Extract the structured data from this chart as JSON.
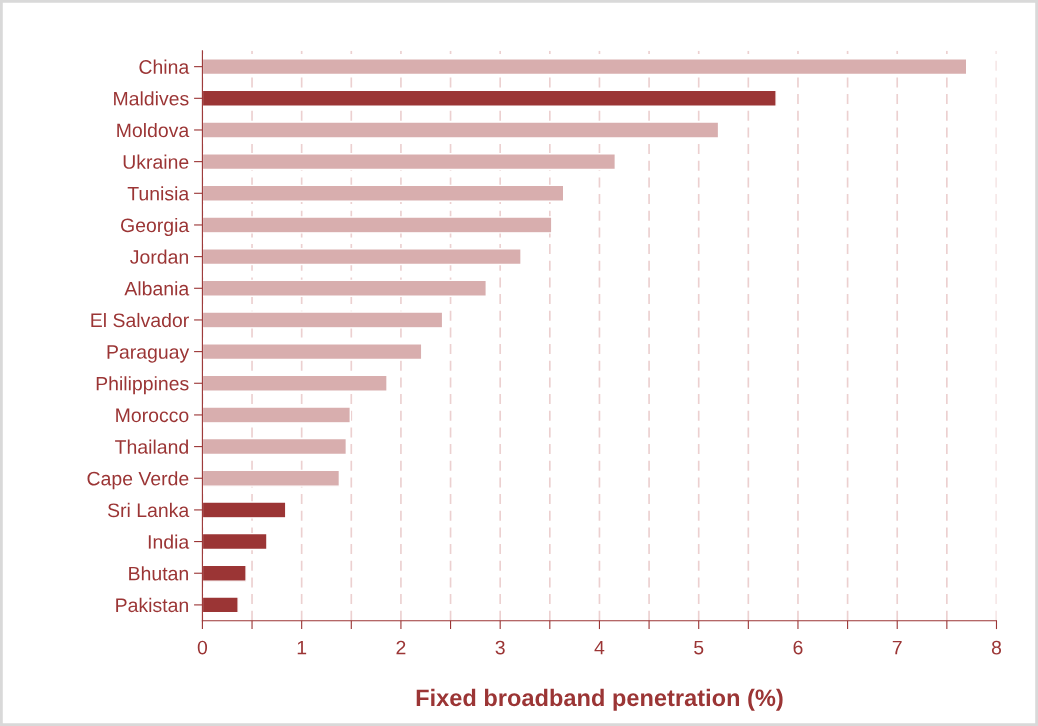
{
  "chart_data": {
    "type": "bar",
    "orientation": "horizontal",
    "xlabel": "Fixed broadband penetration (%)",
    "categories": [
      "China",
      "Maldives",
      "Moldova",
      "Ukraine",
      "Tunisia",
      "Georgia",
      "Jordan",
      "Albania",
      "El Salvador",
      "Paraguay",
      "Philippines",
      "Morocco",
      "Thailand",
      "Cape Verde",
      "Sri Lanka",
      "India",
      "Bhutan",
      "Pakistan"
    ],
    "values": [
      7.7,
      5.78,
      5.2,
      4.16,
      3.64,
      3.52,
      3.21,
      2.86,
      2.42,
      2.21,
      1.86,
      1.49,
      1.45,
      1.38,
      0.84,
      0.65,
      0.44,
      0.36
    ],
    "colors": [
      "#d8aeae",
      "#9b3535",
      "#d8aeae",
      "#d8aeae",
      "#d8aeae",
      "#d8aeae",
      "#d8aeae",
      "#d8aeae",
      "#d8aeae",
      "#d8aeae",
      "#d8aeae",
      "#d8aeae",
      "#d8aeae",
      "#d8aeae",
      "#9b3535",
      "#9b3535",
      "#9b3535",
      "#9b3535"
    ],
    "xlim": [
      0,
      8
    ],
    "xticks": [
      0,
      {
        "value": 0.5,
        "label": null
      },
      1,
      {
        "value": 1.5,
        "label": null
      },
      2,
      {
        "value": 2.5,
        "label": null
      },
      3,
      {
        "value": 3.5,
        "label": null
      },
      4,
      {
        "value": 4.5,
        "label": null
      },
      5,
      {
        "value": 5.5,
        "label": null
      },
      6,
      {
        "value": 6.5,
        "label": null
      },
      7,
      {
        "value": 7.5,
        "label": null
      },
      8
    ],
    "grid": "x",
    "legend": false
  }
}
